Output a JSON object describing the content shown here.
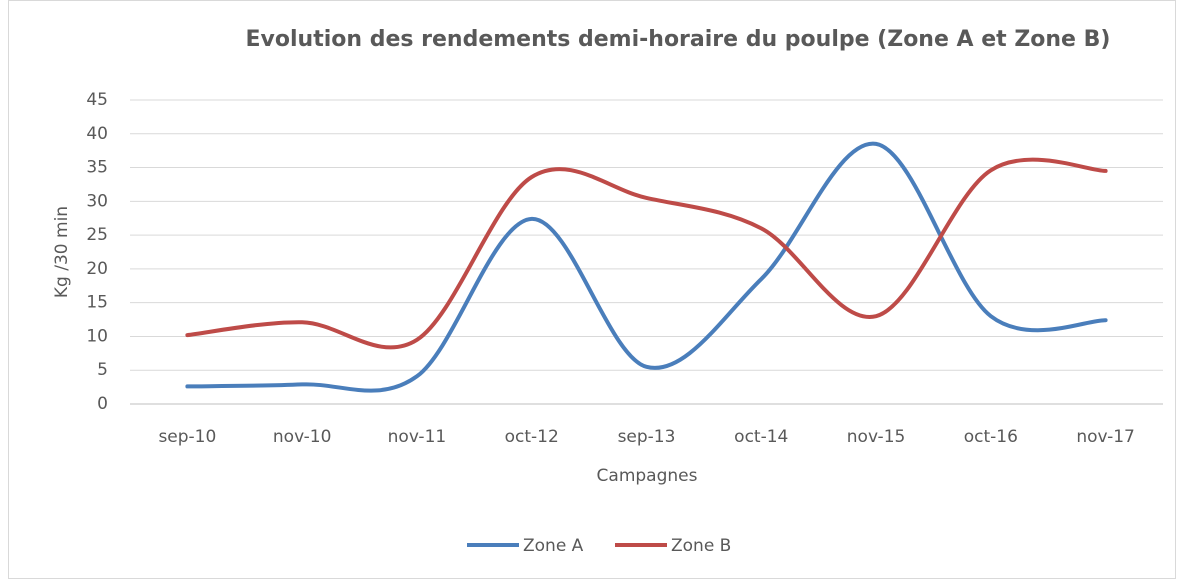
{
  "chart_data": {
    "type": "line",
    "title": "Evolution des rendements demi-horaire du poulpe (Zone A et Zone B)",
    "x_label": "Campagnes",
    "y_label": "Kg /30 min",
    "categories": [
      "sep-10",
      "nov-10",
      "nov-11",
      "oct-12",
      "sep-13",
      "oct-14",
      "nov-15",
      "oct-16",
      "nov-17"
    ],
    "series": [
      {
        "name": "Zone A",
        "color": "#4a7ebb",
        "values": [
          2.6,
          2.9,
          4.1,
          27.4,
          5.5,
          18.5,
          38.5,
          13,
          12.4
        ]
      },
      {
        "name": "Zone B",
        "color": "#be4b48",
        "values": [
          10.2,
          12.1,
          9.5,
          33.6,
          30.5,
          26,
          13,
          34.6,
          34.5
        ]
      }
    ],
    "ylim": [
      0,
      45
    ],
    "yticks": [
      0,
      5,
      10,
      15,
      20,
      25,
      30,
      35,
      40,
      45
    ],
    "grid": true,
    "smooth": true,
    "legend": "bottom"
  }
}
